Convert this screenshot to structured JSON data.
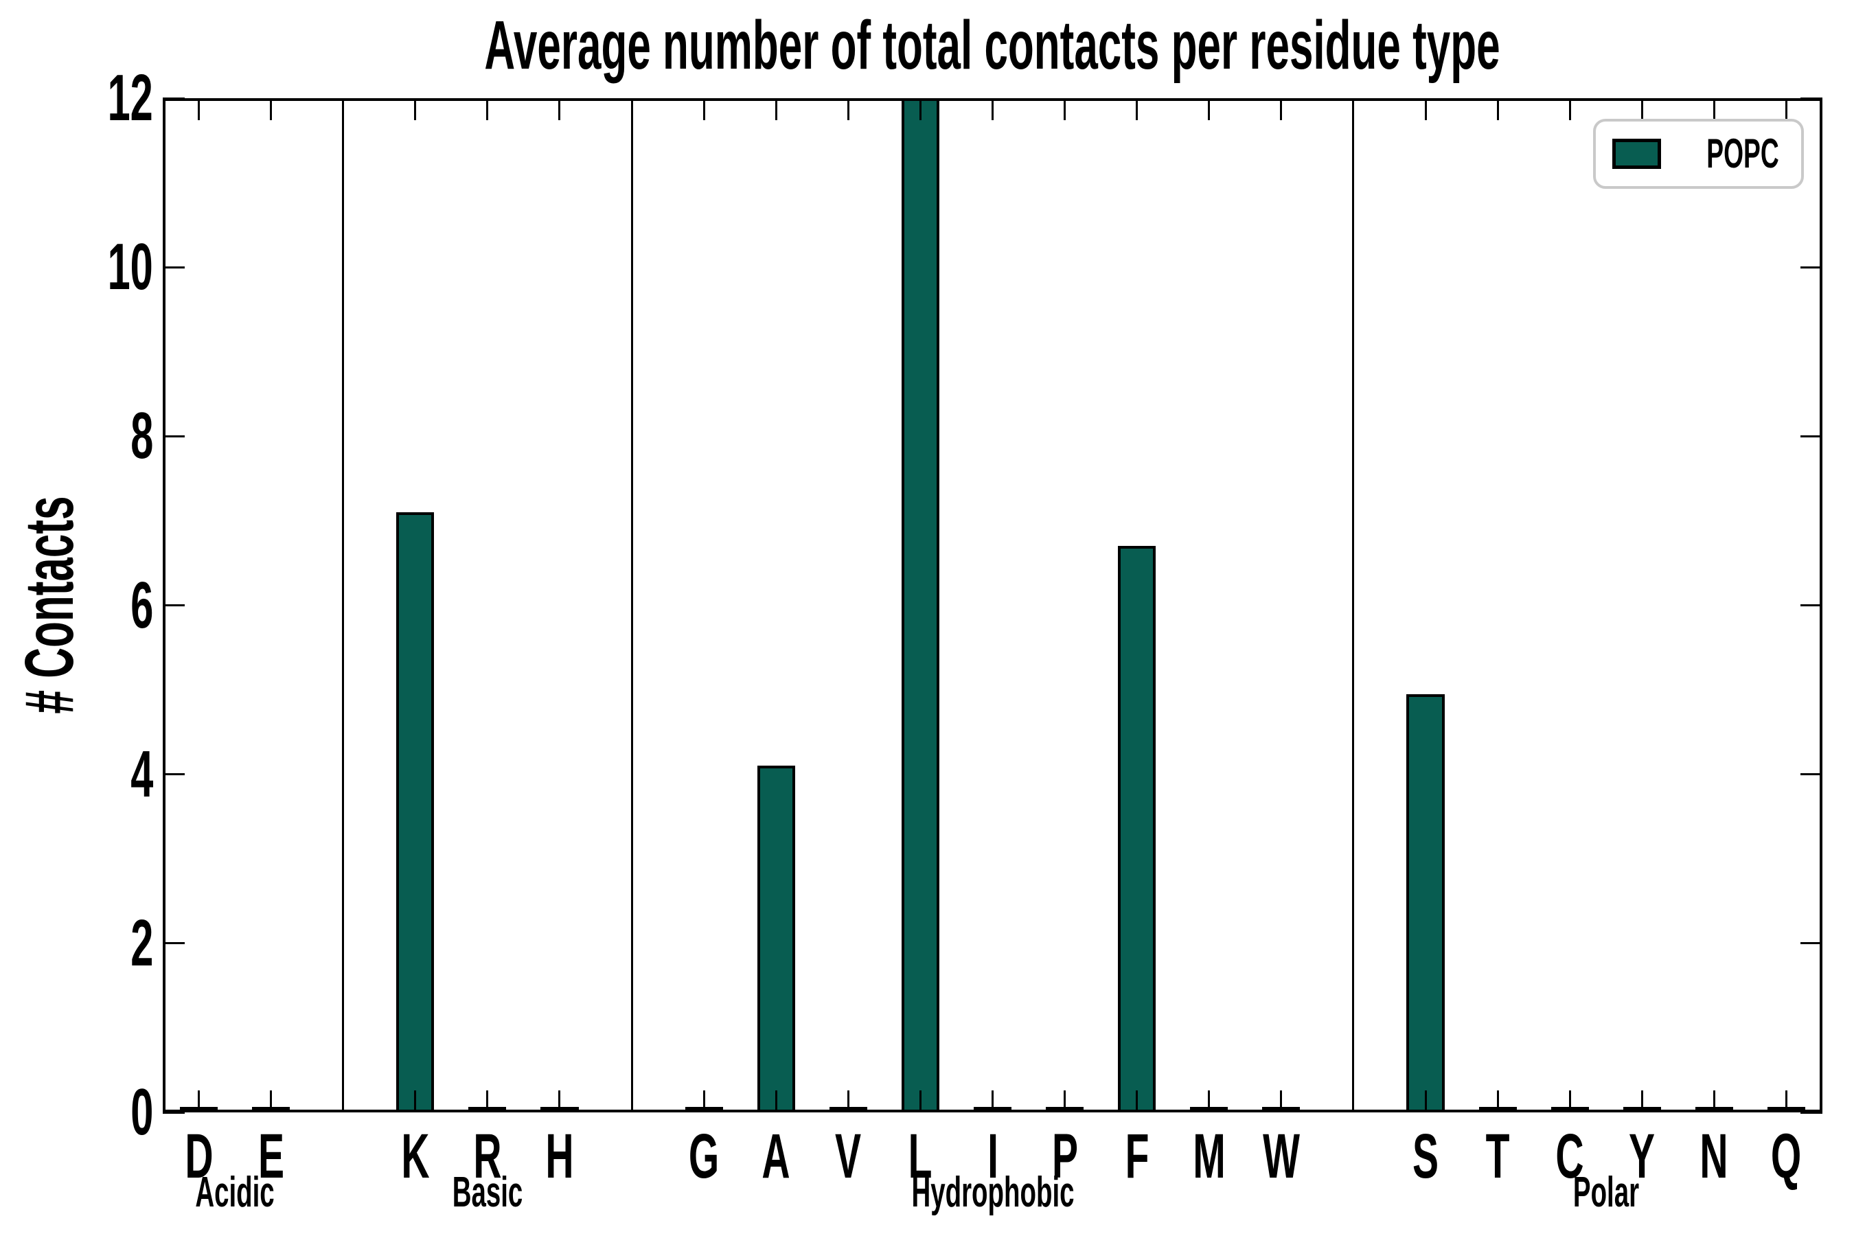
{
  "title": "Average number of total contacts per residue type",
  "ylabel": "# Contacts",
  "legend": {
    "label": "POPC",
    "position": "upper right",
    "swatch_color": "#085d51",
    "border_color": "#c9c9c9"
  },
  "colors": {
    "bar_fill": "#085d51",
    "bar_edge": "#000000",
    "axis": "#000000",
    "background": "#ffffff"
  },
  "chart_data": {
    "type": "bar",
    "title": "Average number of total contacts per residue type",
    "xlabel": "",
    "ylabel": "# Contacts",
    "ylim": [
      0,
      12
    ],
    "yticks": [
      0,
      2,
      4,
      6,
      8,
      10,
      12
    ],
    "grid": false,
    "legend_position": "upper right",
    "series_name": "POPC",
    "bar_color": "#085d51",
    "bar_edge_color": "#000000",
    "group_separators": true,
    "groups": [
      {
        "label": "Acidic",
        "categories": [
          "D",
          "E"
        ],
        "values": [
          0,
          0
        ]
      },
      {
        "label": "Basic",
        "categories": [
          "K",
          "R",
          "H"
        ],
        "values": [
          7.1,
          0,
          0
        ]
      },
      {
        "label": "Hydrophobic",
        "categories": [
          "G",
          "A",
          "V",
          "L",
          "I",
          "P",
          "F",
          "M",
          "W"
        ],
        "values": [
          0,
          4.1,
          0,
          12.0,
          0,
          0,
          6.7,
          0,
          0
        ]
      },
      {
        "label": "Polar",
        "categories": [
          "S",
          "T",
          "C",
          "Y",
          "N",
          "Q"
        ],
        "values": [
          4.95,
          0,
          0,
          0,
          0,
          0
        ]
      }
    ]
  }
}
